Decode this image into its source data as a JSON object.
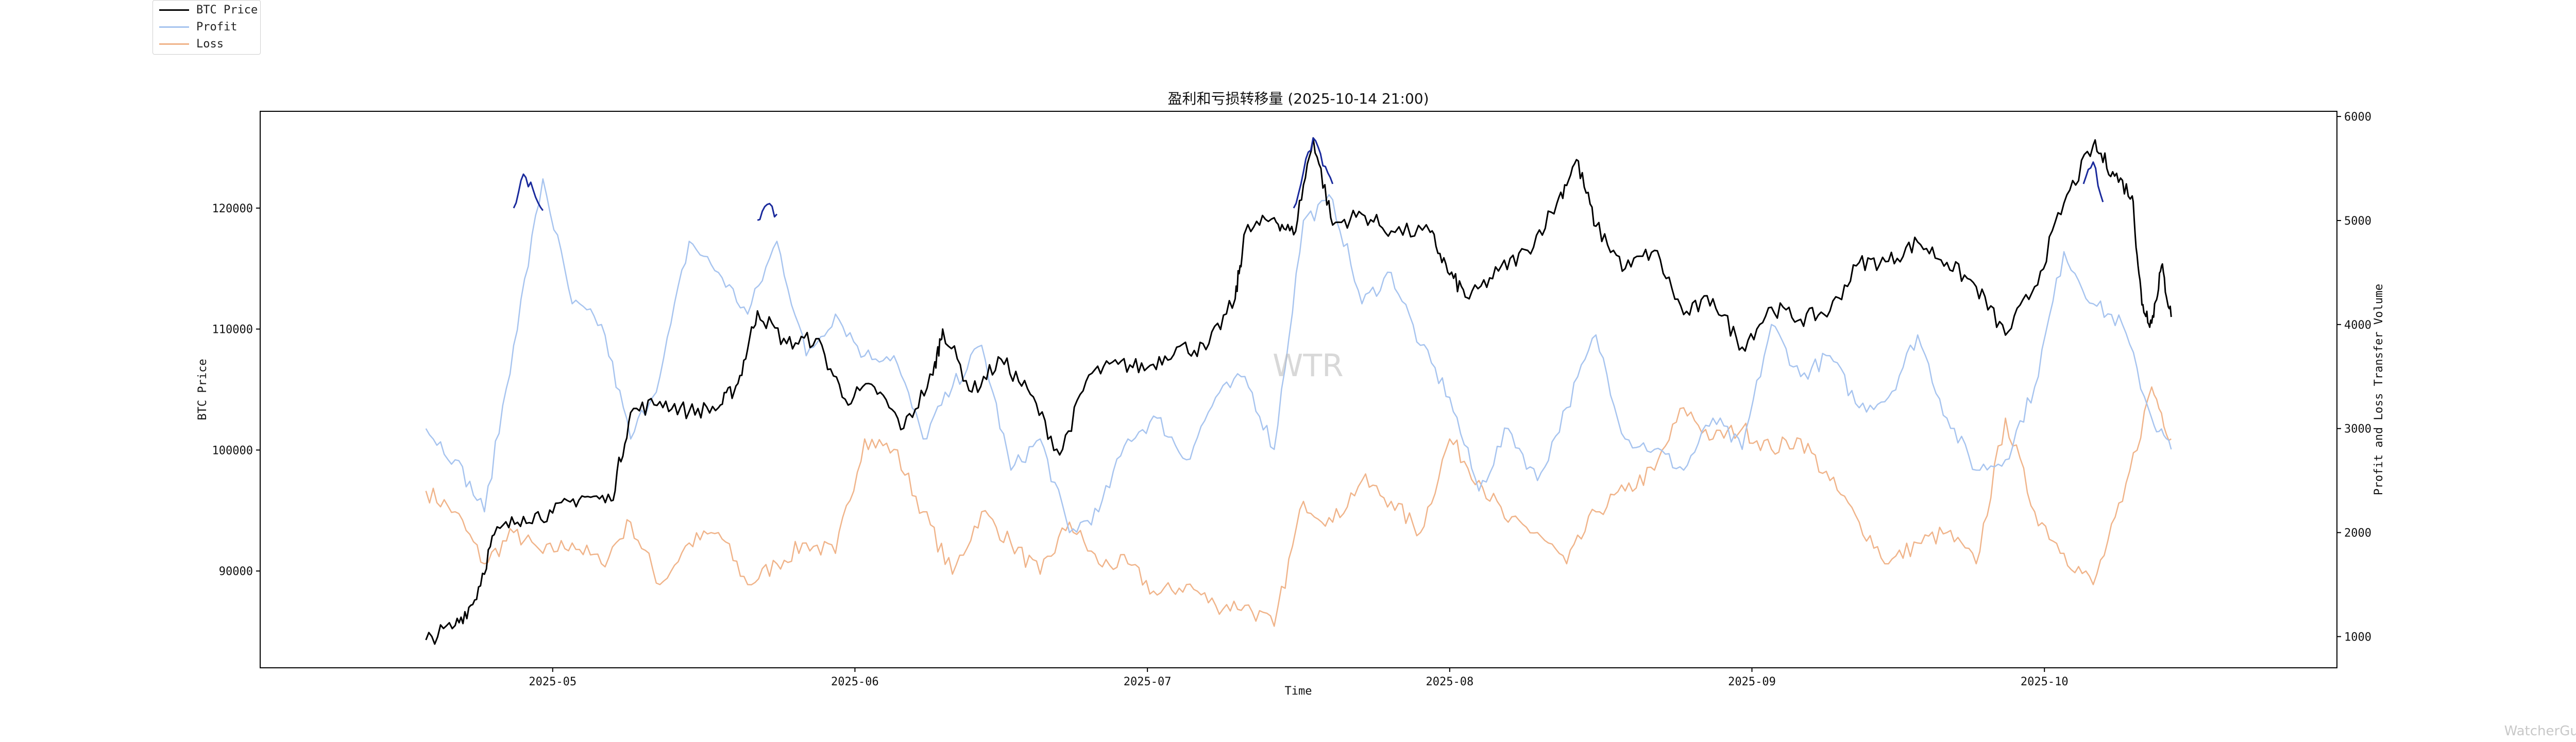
{
  "chart_data": {
    "type": "line",
    "title": "盈利和亏损转移量 (2025-10-14 21:00)",
    "xlabel": "Time",
    "ylabel_left": "BTC Price",
    "ylabel_right": "Profit and Loss Transfer Volume",
    "ylim_left": [
      82000,
      128000
    ],
    "ylim_right": [
      700,
      6050
    ],
    "left_ticks": [
      "90000",
      "100000",
      "110000",
      "120000"
    ],
    "right_ticks": [
      "1000",
      "2000",
      "3000",
      "4000",
      "5000",
      "6000"
    ],
    "x_ticks": [
      "2025-05",
      "2025-06",
      "2025-07",
      "2025-08",
      "2025-09",
      "2025-10"
    ],
    "x_range": [
      "2025-04-01",
      "2025-10-31"
    ],
    "legend": [
      "BTC Price",
      "Profit",
      "Loss"
    ],
    "legend_position": "top-left",
    "watermark": "WTR",
    "footer": "WatcherGuru",
    "colors": {
      "price": "#000000",
      "price_highlight": "#1a2a9c",
      "profit": "#a7c4ef",
      "loss": "#f0b48a"
    },
    "series": [
      {
        "name": "BTC Price",
        "axis": "left",
        "points": [
          [
            "2025-04-18",
            84300
          ],
          [
            "2025-04-21",
            85500
          ],
          [
            "2025-04-23",
            87600
          ],
          [
            "2025-04-25",
            93000
          ],
          [
            "2025-04-28",
            94500
          ],
          [
            "2025-05-01",
            94800
          ],
          [
            "2025-05-04",
            96200
          ],
          [
            "2025-05-07",
            95800
          ],
          [
            "2025-05-09",
            103100
          ],
          [
            "2025-05-12",
            104000
          ],
          [
            "2025-05-15",
            103200
          ],
          [
            "2025-05-18",
            103500
          ],
          [
            "2025-05-20",
            105500
          ],
          [
            "2025-05-22",
            111500
          ],
          [
            "2025-05-25",
            108800
          ],
          [
            "2025-05-28",
            109200
          ],
          [
            "2025-05-31",
            104200
          ],
          [
            "2025-06-03",
            105200
          ],
          [
            "2025-06-06",
            101800
          ],
          [
            "2025-06-09",
            106200
          ],
          [
            "2025-06-10",
            110000
          ],
          [
            "2025-06-13",
            104800
          ],
          [
            "2025-06-16",
            107500
          ],
          [
            "2025-06-19",
            104600
          ],
          [
            "2025-06-22",
            99600
          ],
          [
            "2025-06-25",
            106200
          ],
          [
            "2025-06-28",
            107100
          ],
          [
            "2025-07-01",
            106800
          ],
          [
            "2025-07-04",
            108500
          ],
          [
            "2025-07-07",
            108300
          ],
          [
            "2025-07-10",
            112500
          ],
          [
            "2025-07-11",
            118000
          ],
          [
            "2025-07-14",
            119200
          ],
          [
            "2025-07-16",
            117800
          ],
          [
            "2025-07-18",
            125800
          ],
          [
            "2025-07-20",
            118600
          ],
          [
            "2025-07-23",
            119500
          ],
          [
            "2025-07-26",
            118100
          ],
          [
            "2025-07-30",
            118000
          ],
          [
            "2025-08-01",
            114500
          ],
          [
            "2025-08-03",
            112500
          ],
          [
            "2025-08-06",
            114800
          ],
          [
            "2025-08-09",
            116500
          ],
          [
            "2025-08-12",
            120400
          ],
          [
            "2025-08-14",
            124000
          ],
          [
            "2025-08-16",
            118500
          ],
          [
            "2025-08-19",
            115000
          ],
          [
            "2025-08-22",
            116500
          ],
          [
            "2025-08-25",
            111200
          ],
          [
            "2025-08-28",
            112500
          ],
          [
            "2025-08-31",
            108500
          ],
          [
            "2025-09-03",
            111800
          ],
          [
            "2025-09-06",
            110800
          ],
          [
            "2025-09-09",
            111500
          ],
          [
            "2025-09-12",
            115500
          ],
          [
            "2025-09-15",
            115600
          ],
          [
            "2025-09-18",
            117200
          ],
          [
            "2025-09-21",
            115500
          ],
          [
            "2025-09-24",
            113500
          ],
          [
            "2025-09-27",
            109500
          ],
          [
            "2025-09-30",
            113500
          ],
          [
            "2025-10-03",
            120400
          ],
          [
            "2025-10-06",
            125200
          ],
          [
            "2025-10-08",
            123000
          ],
          [
            "2025-10-10",
            121000
          ],
          [
            "2025-10-11",
            112000
          ],
          [
            "2025-10-12",
            110500
          ],
          [
            "2025-10-13",
            115200
          ],
          [
            "2025-10-14",
            111000
          ]
        ]
      },
      {
        "name": "Profit",
        "axis": "right",
        "points": [
          [
            "2025-04-18",
            3000
          ],
          [
            "2025-04-21",
            2700
          ],
          [
            "2025-04-24",
            2200
          ],
          [
            "2025-04-27",
            3800
          ],
          [
            "2025-04-30",
            5400
          ],
          [
            "2025-05-03",
            4200
          ],
          [
            "2025-05-06",
            4000
          ],
          [
            "2025-05-09",
            2900
          ],
          [
            "2025-05-12",
            3500
          ],
          [
            "2025-05-15",
            4800
          ],
          [
            "2025-05-18",
            4500
          ],
          [
            "2025-05-21",
            4100
          ],
          [
            "2025-05-24",
            4800
          ],
          [
            "2025-05-27",
            3700
          ],
          [
            "2025-05-30",
            4100
          ],
          [
            "2025-06-02",
            3700
          ],
          [
            "2025-06-05",
            3700
          ],
          [
            "2025-06-08",
            2900
          ],
          [
            "2025-06-11",
            3400
          ],
          [
            "2025-06-14",
            3800
          ],
          [
            "2025-06-17",
            2600
          ],
          [
            "2025-06-20",
            2900
          ],
          [
            "2025-06-23",
            2000
          ],
          [
            "2025-06-26",
            2200
          ],
          [
            "2025-06-29",
            2900
          ],
          [
            "2025-07-02",
            3100
          ],
          [
            "2025-07-05",
            2700
          ],
          [
            "2025-07-08",
            3300
          ],
          [
            "2025-07-11",
            3500
          ],
          [
            "2025-07-14",
            2800
          ],
          [
            "2025-07-17",
            5000
          ],
          [
            "2025-07-20",
            5200
          ],
          [
            "2025-07-23",
            4200
          ],
          [
            "2025-07-26",
            4500
          ],
          [
            "2025-07-29",
            3800
          ],
          [
            "2025-08-01",
            3300
          ],
          [
            "2025-08-04",
            2400
          ],
          [
            "2025-08-07",
            3000
          ],
          [
            "2025-08-10",
            2500
          ],
          [
            "2025-08-13",
            3200
          ],
          [
            "2025-08-16",
            3900
          ],
          [
            "2025-08-19",
            2900
          ],
          [
            "2025-08-22",
            2800
          ],
          [
            "2025-08-25",
            2600
          ],
          [
            "2025-08-28",
            3100
          ],
          [
            "2025-08-31",
            2800
          ],
          [
            "2025-09-03",
            4000
          ],
          [
            "2025-09-06",
            3500
          ],
          [
            "2025-09-09",
            3700
          ],
          [
            "2025-09-12",
            3200
          ],
          [
            "2025-09-15",
            3300
          ],
          [
            "2025-09-18",
            3900
          ],
          [
            "2025-09-21",
            3100
          ],
          [
            "2025-09-24",
            2600
          ],
          [
            "2025-09-27",
            2700
          ],
          [
            "2025-09-30",
            3400
          ],
          [
            "2025-10-03",
            4700
          ],
          [
            "2025-10-06",
            4200
          ],
          [
            "2025-10-09",
            4000
          ],
          [
            "2025-10-12",
            3100
          ],
          [
            "2025-10-14",
            2800
          ]
        ]
      },
      {
        "name": "Loss",
        "axis": "right",
        "points": [
          [
            "2025-04-18",
            2400
          ],
          [
            "2025-04-21",
            2200
          ],
          [
            "2025-04-24",
            1700
          ],
          [
            "2025-04-27",
            2000
          ],
          [
            "2025-04-30",
            1800
          ],
          [
            "2025-05-03",
            1900
          ],
          [
            "2025-05-06",
            1700
          ],
          [
            "2025-05-09",
            2100
          ],
          [
            "2025-05-12",
            1500
          ],
          [
            "2025-05-15",
            1900
          ],
          [
            "2025-05-18",
            2000
          ],
          [
            "2025-05-21",
            1500
          ],
          [
            "2025-05-24",
            1700
          ],
          [
            "2025-05-27",
            1900
          ],
          [
            "2025-05-30",
            1800
          ],
          [
            "2025-06-02",
            2900
          ],
          [
            "2025-06-05",
            2800
          ],
          [
            "2025-06-08",
            2200
          ],
          [
            "2025-06-11",
            1600
          ],
          [
            "2025-06-14",
            2200
          ],
          [
            "2025-06-17",
            1900
          ],
          [
            "2025-06-20",
            1600
          ],
          [
            "2025-06-23",
            2100
          ],
          [
            "2025-06-26",
            1700
          ],
          [
            "2025-06-29",
            1700
          ],
          [
            "2025-07-02",
            1400
          ],
          [
            "2025-07-05",
            1500
          ],
          [
            "2025-07-08",
            1300
          ],
          [
            "2025-07-11",
            1300
          ],
          [
            "2025-07-14",
            1100
          ],
          [
            "2025-07-17",
            2300
          ],
          [
            "2025-07-20",
            2100
          ],
          [
            "2025-07-23",
            2500
          ],
          [
            "2025-07-26",
            2300
          ],
          [
            "2025-07-29",
            2000
          ],
          [
            "2025-08-01",
            2900
          ],
          [
            "2025-08-04",
            2500
          ],
          [
            "2025-08-07",
            2100
          ],
          [
            "2025-08-10",
            2000
          ],
          [
            "2025-08-13",
            1700
          ],
          [
            "2025-08-16",
            2200
          ],
          [
            "2025-08-19",
            2400
          ],
          [
            "2025-08-22",
            2600
          ],
          [
            "2025-08-25",
            3200
          ],
          [
            "2025-08-28",
            2900
          ],
          [
            "2025-08-31",
            3000
          ],
          [
            "2025-09-03",
            2800
          ],
          [
            "2025-09-06",
            2900
          ],
          [
            "2025-09-09",
            2500
          ],
          [
            "2025-09-12",
            2100
          ],
          [
            "2025-09-15",
            1700
          ],
          [
            "2025-09-18",
            1900
          ],
          [
            "2025-09-21",
            2000
          ],
          [
            "2025-09-24",
            1700
          ],
          [
            "2025-09-27",
            3100
          ],
          [
            "2025-09-30",
            2200
          ],
          [
            "2025-10-03",
            1800
          ],
          [
            "2025-10-06",
            1500
          ],
          [
            "2025-10-09",
            2300
          ],
          [
            "2025-10-12",
            3400
          ],
          [
            "2025-10-14",
            2900
          ]
        ]
      }
    ],
    "highlight_segments": [
      {
        "from": "2025-04-27",
        "to": "2025-04-30",
        "axis": "left",
        "points": [
          [
            "2025-04-27",
            120000
          ],
          [
            "2025-04-28",
            122800
          ],
          [
            "2025-04-29",
            121500
          ],
          [
            "2025-04-30",
            119800
          ]
        ]
      },
      {
        "from": "2025-05-22",
        "to": "2025-05-24",
        "axis": "left",
        "points": [
          [
            "2025-05-22",
            119000
          ],
          [
            "2025-05-23",
            120300
          ],
          [
            "2025-05-24",
            119500
          ]
        ]
      },
      {
        "from": "2025-07-16",
        "to": "2025-07-20",
        "axis": "left",
        "points": [
          [
            "2025-07-16",
            120000
          ],
          [
            "2025-07-17",
            123000
          ],
          [
            "2025-07-18",
            125800
          ],
          [
            "2025-07-19",
            123500
          ],
          [
            "2025-07-20",
            122000
          ]
        ]
      },
      {
        "from": "2025-10-05",
        "to": "2025-10-07",
        "axis": "left",
        "points": [
          [
            "2025-10-05",
            122000
          ],
          [
            "2025-10-06",
            123800
          ],
          [
            "2025-10-07",
            120500
          ]
        ]
      }
    ]
  }
}
